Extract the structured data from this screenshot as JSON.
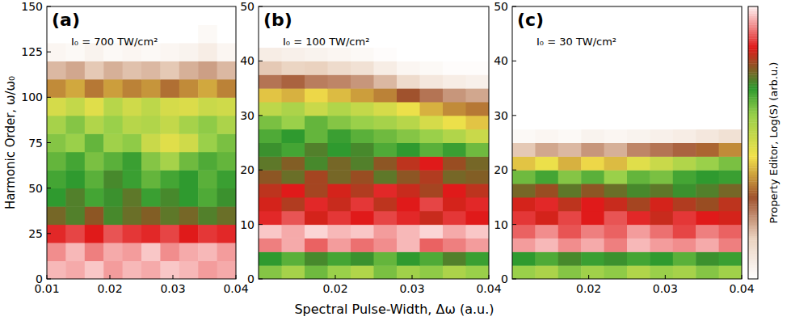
{
  "chart_data": [
    {
      "type": "heatmap",
      "title": "(a)",
      "annotations": [
        "I₀ = 700 TW/cm²"
      ],
      "ylabel": "Harmonic Order, ω/ω₀",
      "xlim": [
        0.01,
        0.04
      ],
      "xticks": [
        0.01,
        0.02,
        0.03,
        0.04
      ],
      "ylim": [
        0,
        150
      ],
      "yticks": [
        0,
        25,
        50,
        75,
        100,
        125,
        150
      ],
      "x_bins": [
        0.01,
        0.013,
        0.016,
        0.019,
        0.022,
        0.025,
        0.028,
        0.031,
        0.034,
        0.037,
        0.04
      ],
      "y_bins": [
        0,
        10,
        20,
        30,
        40,
        50,
        60,
        70,
        80,
        90,
        100,
        110,
        120,
        130,
        140,
        150
      ],
      "cells": [
        [
          9.6,
          9.5,
          9.7,
          9.4,
          9.6,
          9.5,
          9.7,
          9.6,
          9.4,
          9.5
        ],
        [
          9.3,
          9.6,
          9.2,
          9.5,
          9.4,
          9.7,
          9.3,
          9.5,
          9.6,
          9.4
        ],
        [
          8.6,
          8.8,
          8.5,
          8.9,
          8.7,
          8.6,
          8.8,
          8.5,
          8.7,
          8.6
        ],
        [
          7.6,
          7.3,
          7.8,
          7.2,
          7.5,
          7.7,
          7.4,
          7.6,
          7.3,
          7.5
        ],
        [
          7.0,
          7.3,
          6.8,
          7.1,
          7.4,
          6.9,
          7.2,
          7.0,
          6.7,
          7.1
        ],
        [
          6.8,
          7.0,
          6.6,
          7.2,
          6.9,
          6.5,
          6.8,
          7.0,
          6.6,
          6.9
        ],
        [
          6.5,
          6.8,
          6.3,
          6.6,
          6.9,
          6.2,
          5.8,
          6.4,
          6.7,
          6.5
        ],
        [
          6.2,
          6.0,
          6.5,
          5.9,
          6.1,
          5.2,
          4.8,
          5.1,
          6.0,
          6.3
        ],
        [
          5.8,
          6.2,
          5.6,
          6.0,
          5.5,
          5.6,
          5.3,
          5.8,
          6.1,
          5.7
        ],
        [
          5.0,
          5.3,
          4.8,
          5.5,
          5.1,
          5.4,
          5.0,
          4.9,
          5.2,
          5.1
        ],
        [
          3.6,
          3.9,
          3.4,
          3.8,
          3.5,
          3.7,
          3.3,
          3.6,
          3.9,
          3.5
        ],
        [
          1.8,
          2.0,
          1.6,
          1.9,
          1.7,
          1.8,
          1.6,
          1.9,
          2.1,
          1.8
        ],
        [
          0.3,
          0.2,
          0.4,
          0.2,
          0.3,
          0.2,
          0.3,
          0.4,
          0.6,
          0.3
        ],
        [
          0,
          0,
          0,
          0,
          0,
          0,
          0,
          0,
          0.2,
          0
        ],
        [
          0,
          0,
          0,
          0,
          0,
          0,
          0,
          0,
          0,
          0
        ]
      ]
    },
    {
      "type": "heatmap",
      "title": "(b)",
      "annotations": [
        "I₀ = 100 TW/cm²"
      ],
      "xlabel": "Spectral Pulse-Width, Δω (a.u.)",
      "xlim": [
        0.01,
        0.04
      ],
      "xticks": [
        0.02,
        0.03,
        0.04
      ],
      "ylim": [
        0,
        50
      ],
      "yticks": [
        0,
        10,
        20,
        30,
        40,
        50
      ],
      "x_bins": [
        0.01,
        0.013,
        0.016,
        0.019,
        0.022,
        0.025,
        0.028,
        0.031,
        0.034,
        0.037,
        0.04
      ],
      "y_bins": [
        0,
        2.5,
        5,
        7.5,
        10,
        12.5,
        15,
        17.5,
        20,
        22.5,
        25,
        27.5,
        30,
        32.5,
        35,
        37.5,
        40,
        42.5,
        45,
        47.5,
        50
      ],
      "cells": [
        [
          6.2,
          5.8,
          6.4,
          6.0,
          5.6,
          6.3,
          5.9,
          6.1,
          5.7,
          6.0
        ],
        [
          7.0,
          6.6,
          7.2,
          6.8,
          7.1,
          6.5,
          7.0,
          6.7,
          7.3,
          6.9
        ],
        [
          9.2,
          9.5,
          9.0,
          9.4,
          9.1,
          9.3,
          9.6,
          9.0,
          9.2,
          9.4
        ],
        [
          9.7,
          9.5,
          9.8,
          9.6,
          9.7,
          9.4,
          9.6,
          9.8,
          9.5,
          9.7
        ],
        [
          8.6,
          8.9,
          8.4,
          8.7,
          8.5,
          8.8,
          8.6,
          8.3,
          8.7,
          8.5
        ],
        [
          8.4,
          8.1,
          8.6,
          8.3,
          8.7,
          8.2,
          8.5,
          8.8,
          8.4,
          8.6
        ],
        [
          8.2,
          8.5,
          8.0,
          8.4,
          8.1,
          8.6,
          8.3,
          8.0,
          8.5,
          8.2
        ],
        [
          7.8,
          7.5,
          8.0,
          7.6,
          7.9,
          7.4,
          7.8,
          8.1,
          7.6,
          7.7
        ],
        [
          7.4,
          7.7,
          7.2,
          7.6,
          7.3,
          7.8,
          8.2,
          8.5,
          7.9,
          7.6
        ],
        [
          7.1,
          6.8,
          7.3,
          7.0,
          7.2,
          6.7,
          7.0,
          6.6,
          6.9,
          6.4
        ],
        [
          6.7,
          7.0,
          6.5,
          6.9,
          6.6,
          6.4,
          6.2,
          6.0,
          5.6,
          5.2
        ],
        [
          6.3,
          6.0,
          6.5,
          6.2,
          6.0,
          5.8,
          5.5,
          5.0,
          4.6,
          4.2
        ],
        [
          5.4,
          5.7,
          5.2,
          5.6,
          5.3,
          5.0,
          4.6,
          4.0,
          3.6,
          3.4
        ],
        [
          4.2,
          4.0,
          4.4,
          4.1,
          3.8,
          3.5,
          3.0,
          2.6,
          2.2,
          2.0
        ],
        [
          2.6,
          2.8,
          2.5,
          2.4,
          2.2,
          1.8,
          1.2,
          0.8,
          0.6,
          0.5
        ],
        [
          1.6,
          1.4,
          1.5,
          1.2,
          1.0,
          0.6,
          0.3,
          0.2,
          0.1,
          0.1
        ],
        [
          0.6,
          0.5,
          0.4,
          0.3,
          0.2,
          0.1,
          0,
          0,
          0,
          0
        ],
        [
          0,
          0,
          0,
          0,
          0,
          0,
          0,
          0,
          0,
          0
        ],
        [
          0,
          0,
          0,
          0,
          0,
          0,
          0,
          0,
          0,
          0
        ],
        [
          0,
          0,
          0,
          0,
          0,
          0,
          0,
          0,
          0,
          0
        ]
      ]
    },
    {
      "type": "heatmap",
      "title": "(c)",
      "annotations": [
        "I₀ = 30 TW/cm²"
      ],
      "xlim": [
        0.01,
        0.04
      ],
      "xticks": [
        0.02,
        0.03,
        0.04
      ],
      "ylim": [
        0,
        50
      ],
      "yticks": [
        0,
        10,
        20,
        30,
        40,
        50
      ],
      "x_bins": [
        0.01,
        0.013,
        0.016,
        0.019,
        0.022,
        0.025,
        0.028,
        0.031,
        0.034,
        0.037,
        0.04
      ],
      "y_bins": [
        0,
        2.5,
        5,
        7.5,
        10,
        12.5,
        15,
        17.5,
        20,
        22.5,
        25,
        27.5,
        30,
        32.5,
        35,
        37.5,
        40,
        42.5,
        45,
        47.5,
        50
      ],
      "cells": [
        [
          6.0,
          5.7,
          6.2,
          5.9,
          6.1,
          5.6,
          6.0,
          5.8,
          6.2,
          5.9
        ],
        [
          7.0,
          6.7,
          7.2,
          6.9,
          7.1,
          6.8,
          7.0,
          6.6,
          7.1,
          6.9
        ],
        [
          9.4,
          9.6,
          9.3,
          9.5,
          9.2,
          9.6,
          9.4,
          9.3,
          9.5,
          9.2
        ],
        [
          9.0,
          9.3,
          8.9,
          9.2,
          9.0,
          9.4,
          9.1,
          8.8,
          9.2,
          9.0
        ],
        [
          8.7,
          8.4,
          8.8,
          8.5,
          8.9,
          8.6,
          8.3,
          8.7,
          8.5,
          8.4
        ],
        [
          8.4,
          8.6,
          8.2,
          8.5,
          8.3,
          8.0,
          8.4,
          8.1,
          7.9,
          8.2
        ],
        [
          7.6,
          7.9,
          7.4,
          7.8,
          7.5,
          7.2,
          7.4,
          7.1,
          7.3,
          7.6
        ],
        [
          6.4,
          6.8,
          6.2,
          6.6,
          6.0,
          6.5,
          6.3,
          6.8,
          7.0,
          6.9
        ],
        [
          4.2,
          4.6,
          4.0,
          4.4,
          4.1,
          4.8,
          5.2,
          5.6,
          6.0,
          6.3
        ],
        [
          1.6,
          2.0,
          1.8,
          2.2,
          1.9,
          2.4,
          2.6,
          2.8,
          3.2,
          3.6
        ],
        [
          0.2,
          0.3,
          0.2,
          0.4,
          0.3,
          0.4,
          0.5,
          0.6,
          0.8,
          1.0
        ],
        [
          0,
          0,
          0,
          0,
          0,
          0,
          0,
          0,
          0,
          0
        ],
        [
          0,
          0,
          0,
          0,
          0,
          0,
          0,
          0,
          0,
          0
        ],
        [
          0,
          0,
          0,
          0,
          0,
          0,
          0,
          0,
          0,
          0
        ],
        [
          0,
          0,
          0,
          0,
          0,
          0,
          0,
          0,
          0,
          0
        ],
        [
          0,
          0,
          0,
          0,
          0,
          0,
          0,
          0,
          0,
          0
        ],
        [
          0,
          0,
          0,
          0,
          0,
          0,
          0,
          0,
          0,
          0
        ],
        [
          0,
          0,
          0,
          0,
          0,
          0,
          0,
          0,
          0,
          0
        ],
        [
          0,
          0,
          0,
          0,
          0,
          0,
          0,
          0,
          0,
          0
        ],
        [
          0,
          0,
          0,
          0,
          0,
          0,
          0,
          0,
          0,
          0
        ]
      ],
      "colorbar": {
        "label": "Property Editor, Log(S) (arb.u.)",
        "range": [
          0,
          10
        ]
      }
    }
  ]
}
